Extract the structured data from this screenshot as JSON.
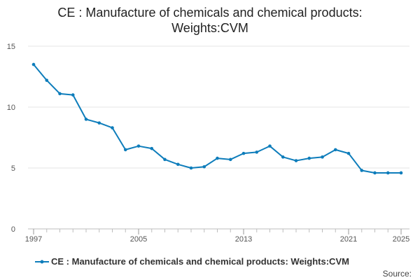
{
  "chart_data": {
    "type": "line",
    "title": "CE : Manufacture of chemicals and chemical products: Weights:CVM",
    "title_lines": [
      "CE : Manufacture of chemicals and chemical products:",
      "Weights:CVM"
    ],
    "xlabel": "",
    "ylabel": "",
    "x": [
      1997,
      1998,
      1999,
      2000,
      2001,
      2002,
      2003,
      2004,
      2005,
      2006,
      2007,
      2008,
      2009,
      2010,
      2011,
      2012,
      2013,
      2014,
      2015,
      2016,
      2017,
      2018,
      2019,
      2020,
      2021,
      2022,
      2023,
      2024,
      2025
    ],
    "series": [
      {
        "name": "CE : Manufacture of chemicals and chemical products: Weights:CVM",
        "color": "#0e7dbb",
        "values": [
          13.5,
          12.2,
          11.1,
          11.0,
          9.0,
          8.7,
          8.3,
          6.5,
          6.8,
          6.6,
          5.7,
          5.3,
          5.0,
          5.1,
          5.8,
          5.7,
          6.2,
          6.3,
          6.8,
          5.9,
          5.6,
          5.8,
          5.9,
          6.5,
          6.2,
          4.8,
          4.6,
          4.6,
          4.6
        ]
      }
    ],
    "ylim": [
      0,
      15
    ],
    "xlim": [
      1997,
      2025
    ],
    "yticks": [
      "0",
      "5",
      "10",
      "15"
    ],
    "yticks_values": [
      0,
      5,
      10,
      15
    ],
    "xticks": [
      "1997",
      "2005",
      "2013",
      "2021",
      "2025"
    ],
    "xticks_values": [
      1997,
      2005,
      2013,
      2021,
      2025
    ],
    "grid": true,
    "legend_position": "bottom",
    "source_label": "Source:"
  }
}
